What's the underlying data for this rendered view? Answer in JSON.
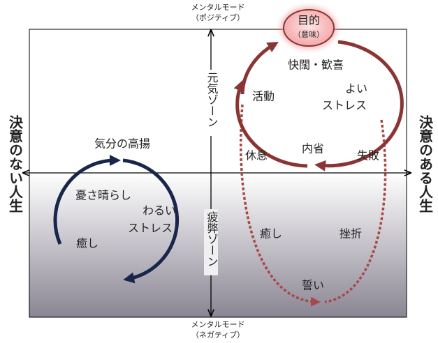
{
  "axes": {
    "top": [
      "メンタルモード",
      "（ポジティブ）"
    ],
    "bottom": [
      "メンタルモード",
      "（ネガティブ）"
    ],
    "left": "決意のない人生",
    "right": "決意のある人生"
  },
  "zones": {
    "upper": "元気ゾーン",
    "lower": "疲弊ゾーン"
  },
  "left_cycle": {
    "top": "気分の高揚",
    "left": "憂さ晴らし",
    "center": [
      "わるい",
      "ストレス"
    ],
    "bottom": "癒し"
  },
  "right_cycle": {
    "goal": [
      "目的",
      "（意味）"
    ],
    "top": "快闊・歓喜",
    "left": "活動",
    "center": [
      "よい",
      "ストレス"
    ],
    "bottom_left": "休息",
    "bottom": "内省",
    "bottom_right": "失敗"
  },
  "lower_right": {
    "left": "癒し",
    "right": "挫折",
    "bottom": "誓い"
  }
}
